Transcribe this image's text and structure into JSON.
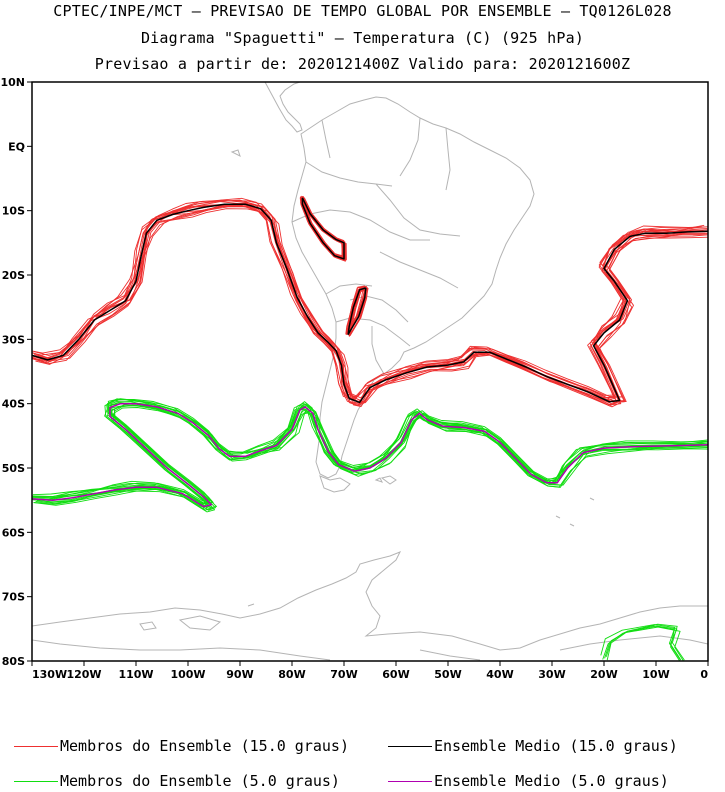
{
  "header": {
    "line1": "CPTEC/INPE/MCT – PREVISAO DE TEMPO GLOBAL POR ENSEMBLE – TQ0126L028",
    "line2": "Diagrama \"Spaguetti\" – Temperatura (C) (925 hPa)",
    "line3": "Previsao a partir de: 2020121400Z  Valido para: 2020121600Z"
  },
  "map": {
    "lat_labels": [
      "10N",
      "EQ",
      "10S",
      "20S",
      "30S",
      "40S",
      "50S",
      "60S",
      "70S",
      "80S"
    ],
    "lon_labels": [
      "130W",
      "120W",
      "110W",
      "100W",
      "90W",
      "80W",
      "70W",
      "60W",
      "50W",
      "40W",
      "30W",
      "20W",
      "10W",
      "0"
    ],
    "lon_range": [
      -130,
      0
    ],
    "lat_range": [
      -80,
      10
    ],
    "colors": {
      "coast": "#b4b4b4",
      "member_15": "#ee3030",
      "mean_15": "#000000",
      "member_5": "#11dd11",
      "mean_5": "#b000b0"
    }
  },
  "legend": {
    "members_15": "Membros do Ensemble (15.0 graus)",
    "mean_15": "Ensemble Medio (15.0 graus)",
    "members_5": "Membros do Ensemble (5.0 graus)",
    "mean_5": "Ensemble Medio (5.0 graus)"
  }
}
